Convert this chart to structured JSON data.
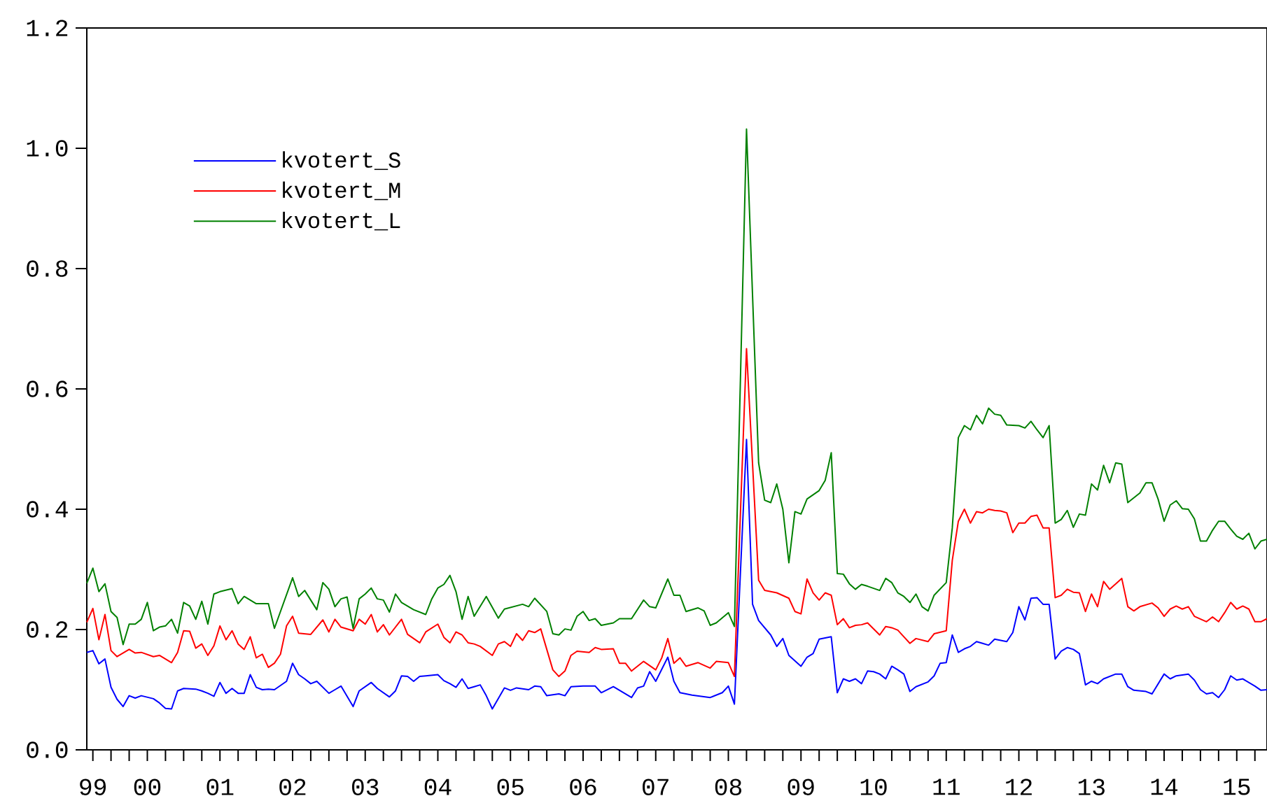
{
  "chart_data": {
    "type": "line",
    "xlim": [
      "1999-09",
      "2015-12"
    ],
    "ylim": [
      0,
      1.2
    ],
    "yticks": [
      {
        "value": 0,
        "label": "0.0"
      },
      {
        "value": 0.2,
        "label": "0.2"
      },
      {
        "value": 0.4,
        "label": "0.4"
      },
      {
        "value": 0.6,
        "label": "0.6"
      },
      {
        "value": 0.8,
        "label": "0.8"
      },
      {
        "value": 1.0,
        "label": "1.0"
      },
      {
        "value": 1.2,
        "label": "1.2"
      }
    ],
    "xticks": [
      {
        "value": "1999-10",
        "label": "99"
      },
      {
        "value": "2000-01",
        "label": null
      },
      {
        "value": "2000-04",
        "label": null
      },
      {
        "value": "2000-07",
        "label": "00"
      },
      {
        "value": "2000-10",
        "label": null
      },
      {
        "value": "2001-01",
        "label": null
      },
      {
        "value": "2001-04",
        "label": null
      },
      {
        "value": "2001-07",
        "label": "01"
      },
      {
        "value": "2001-10",
        "label": null
      },
      {
        "value": "2002-01",
        "label": null
      },
      {
        "value": "2002-04",
        "label": null
      },
      {
        "value": "2002-07",
        "label": "02"
      },
      {
        "value": "2002-10",
        "label": null
      },
      {
        "value": "2003-01",
        "label": null
      },
      {
        "value": "2003-04",
        "label": null
      },
      {
        "value": "2003-07",
        "label": "03"
      },
      {
        "value": "2003-10",
        "label": null
      },
      {
        "value": "2004-01",
        "label": null
      },
      {
        "value": "2004-04",
        "label": null
      },
      {
        "value": "2004-07",
        "label": "04"
      },
      {
        "value": "2004-10",
        "label": null
      },
      {
        "value": "2005-01",
        "label": null
      },
      {
        "value": "2005-04",
        "label": null
      },
      {
        "value": "2005-07",
        "label": "05"
      },
      {
        "value": "2005-10",
        "label": null
      },
      {
        "value": "2006-01",
        "label": null
      },
      {
        "value": "2006-04",
        "label": null
      },
      {
        "value": "2006-07",
        "label": "06"
      },
      {
        "value": "2006-10",
        "label": null
      },
      {
        "value": "2007-01",
        "label": null
      },
      {
        "value": "2007-04",
        "label": null
      },
      {
        "value": "2007-07",
        "label": "07"
      },
      {
        "value": "2007-10",
        "label": null
      },
      {
        "value": "2008-01",
        "label": null
      },
      {
        "value": "2008-04",
        "label": null
      },
      {
        "value": "2008-07",
        "label": "08"
      },
      {
        "value": "2008-10",
        "label": null
      },
      {
        "value": "2009-01",
        "label": null
      },
      {
        "value": "2009-04",
        "label": null
      },
      {
        "value": "2009-07",
        "label": "09"
      },
      {
        "value": "2009-10",
        "label": null
      },
      {
        "value": "2010-01",
        "label": null
      },
      {
        "value": "2010-04",
        "label": null
      },
      {
        "value": "2010-07",
        "label": "10"
      },
      {
        "value": "2010-10",
        "label": null
      },
      {
        "value": "2011-01",
        "label": null
      },
      {
        "value": "2011-04",
        "label": null
      },
      {
        "value": "2011-07",
        "label": "11"
      },
      {
        "value": "2011-10",
        "label": null
      },
      {
        "value": "2012-01",
        "label": null
      },
      {
        "value": "2012-04",
        "label": null
      },
      {
        "value": "2012-07",
        "label": "12"
      },
      {
        "value": "2012-10",
        "label": null
      },
      {
        "value": "2013-01",
        "label": null
      },
      {
        "value": "2013-04",
        "label": null
      },
      {
        "value": "2013-07",
        "label": "13"
      },
      {
        "value": "2013-10",
        "label": null
      },
      {
        "value": "2014-01",
        "label": null
      },
      {
        "value": "2014-04",
        "label": null
      },
      {
        "value": "2014-07",
        "label": "14"
      },
      {
        "value": "2014-10",
        "label": null
      },
      {
        "value": "2015-01",
        "label": null
      },
      {
        "value": "2015-04",
        "label": null
      },
      {
        "value": "2015-07",
        "label": "15"
      },
      {
        "value": "2015-10",
        "label": null
      }
    ],
    "legend": "top left",
    "series": [
      {
        "name": "kvotert_S",
        "color": "#0000ff",
        "x": [
          "1999-09",
          "1999-10",
          "1999-11",
          "1999-12",
          "2000-01",
          "2000-02",
          "2000-03",
          "2000-04",
          "2000-05",
          "2000-06",
          "2000-08",
          "2000-09",
          "2000-10",
          "2000-11",
          "2000-12",
          "2001-01",
          "2001-03",
          "2001-04",
          "2001-05",
          "2001-06",
          "2001-07",
          "2001-08",
          "2001-09",
          "2001-10",
          "2001-11",
          "2001-12",
          "2002-01",
          "2002-02",
          "2002-03",
          "2002-04",
          "2002-06",
          "2002-07",
          "2002-08",
          "2002-09",
          "2002-10",
          "2002-11",
          "2003-01",
          "2003-02",
          "2003-03",
          "2003-05",
          "2003-06",
          "2003-08",
          "2003-09",
          "2003-11",
          "2003-12",
          "2004-01",
          "2004-02",
          "2004-03",
          "2004-04",
          "2004-05",
          "2004-07",
          "2004-08",
          "2004-09",
          "2004-10",
          "2004-11",
          "2004-12",
          "2005-01",
          "2005-02",
          "2005-03",
          "2005-04",
          "2005-06",
          "2005-07",
          "2005-08",
          "2005-10",
          "2005-11",
          "2005-12",
          "2006-01",
          "2006-03",
          "2006-04",
          "2006-05",
          "2006-07",
          "2006-09",
          "2006-10",
          "2006-12",
          "2007-03",
          "2007-04",
          "2007-05",
          "2007-06",
          "2007-07",
          "2007-09",
          "2007-10",
          "2007-11",
          "2008-01",
          "2008-04",
          "2008-06",
          "2008-07",
          "2008-08",
          "2008-10",
          "2008-11",
          "2008-12",
          "2009-02",
          "2009-03",
          "2009-04",
          "2009-05",
          "2009-07",
          "2009-08",
          "2009-09",
          "2009-10",
          "2009-12",
          "2010-01",
          "2010-02",
          "2010-03",
          "2010-04",
          "2010-05",
          "2010-06",
          "2010-07",
          "2010-08",
          "2010-09",
          "2010-10",
          "2010-11",
          "2010-12",
          "2011-01",
          "2011-02",
          "2011-04",
          "2011-05",
          "2011-06",
          "2011-07",
          "2011-08",
          "2011-09",
          "2011-10",
          "2011-11",
          "2011-12",
          "2012-01",
          "2012-02",
          "2012-03",
          "2012-04",
          "2012-05",
          "2012-06",
          "2012-07",
          "2012-08",
          "2012-09",
          "2012-10",
          "2012-11",
          "2012-12",
          "2013-01",
          "2013-02",
          "2013-03",
          "2013-04",
          "2013-05",
          "2013-06",
          "2013-07",
          "2013-08",
          "2013-09",
          "2013-11",
          "2013-12",
          "2014-01",
          "2014-02",
          "2014-04",
          "2014-05",
          "2014-07",
          "2014-08",
          "2014-09",
          "2014-11",
          "2014-12",
          "2015-01",
          "2015-02",
          "2015-03",
          "2015-04",
          "2015-05",
          "2015-06",
          "2015-07",
          "2015-08",
          "2015-10",
          "2015-11",
          "2015-12"
        ],
        "values": [
          0.162,
          0.165,
          0.143,
          0.151,
          0.104,
          0.084,
          0.072,
          0.09,
          0.086,
          0.09,
          0.085,
          0.078,
          0.069,
          0.068,
          0.098,
          0.102,
          0.101,
          0.098,
          0.094,
          0.089,
          0.112,
          0.094,
          0.102,
          0.094,
          0.094,
          0.125,
          0.104,
          0.1,
          0.101,
          0.1,
          0.114,
          0.144,
          0.125,
          0.118,
          0.11,
          0.114,
          0.094,
          0.1,
          0.106,
          0.072,
          0.098,
          0.112,
          0.102,
          0.088,
          0.098,
          0.123,
          0.122,
          0.114,
          0.122,
          0.123,
          0.125,
          0.115,
          0.11,
          0.104,
          0.118,
          0.102,
          0.105,
          0.108,
          0.09,
          0.068,
          0.103,
          0.099,
          0.103,
          0.1,
          0.106,
          0.105,
          0.09,
          0.093,
          0.09,
          0.105,
          0.106,
          0.106,
          0.095,
          0.105,
          0.087,
          0.103,
          0.106,
          0.13,
          0.114,
          0.154,
          0.114,
          0.095,
          0.091,
          0.087,
          0.095,
          0.106,
          0.076,
          0.516,
          0.242,
          0.215,
          0.191,
          0.172,
          0.185,
          0.157,
          0.139,
          0.154,
          0.16,
          0.184,
          0.188,
          0.095,
          0.118,
          0.114,
          0.118,
          0.11,
          0.131,
          0.13,
          0.126,
          0.118,
          0.139,
          0.133,
          0.126,
          0.097,
          0.105,
          0.113,
          0.123,
          0.144,
          0.145,
          0.191,
          0.162,
          0.168,
          0.172,
          0.18,
          0.177,
          0.174,
          0.184,
          0.182,
          0.18,
          0.195,
          0.238,
          0.216,
          0.252,
          0.253,
          0.242,
          0.242,
          0.151,
          0.164,
          0.17,
          0.167,
          0.16,
          0.108,
          0.114,
          0.11,
          0.118,
          0.126,
          0.126,
          0.105,
          0.099,
          0.097,
          0.093,
          0.126,
          0.118,
          0.123,
          0.126,
          0.116,
          0.1,
          0.093,
          0.095,
          0.087,
          0.1,
          0.123,
          0.116,
          0.118,
          0.106,
          0.099,
          0.1
        ]
      },
      {
        "name": "kvotert_M",
        "color": "#ff0000",
        "x": [
          "1999-09",
          "1999-10",
          "1999-11",
          "1999-12",
          "2000-01",
          "2000-02",
          "2000-04",
          "2000-05",
          "2000-06",
          "2000-08",
          "2000-09",
          "2000-11",
          "2000-12",
          "2001-01",
          "2001-02",
          "2001-03",
          "2001-04",
          "2001-05",
          "2001-06",
          "2001-07",
          "2001-08",
          "2001-09",
          "2001-10",
          "2001-11",
          "2001-12",
          "2002-01",
          "2002-02",
          "2002-03",
          "2002-04",
          "2002-05",
          "2002-06",
          "2002-07",
          "2002-08",
          "2002-10",
          "2002-12",
          "2003-01",
          "2003-02",
          "2003-03",
          "2003-05",
          "2003-06",
          "2003-07",
          "2003-08",
          "2003-09",
          "2003-10",
          "2003-11",
          "2004-01",
          "2004-02",
          "2004-04",
          "2004-05",
          "2004-07",
          "2004-08",
          "2004-09",
          "2004-10",
          "2004-11",
          "2004-12",
          "2005-01",
          "2005-02",
          "2005-04",
          "2005-05",
          "2005-06",
          "2005-07",
          "2005-08",
          "2005-09",
          "2005-10",
          "2005-11",
          "2005-12",
          "2006-02",
          "2006-03",
          "2006-04",
          "2006-05",
          "2006-06",
          "2006-08",
          "2006-09",
          "2006-10",
          "2006-12",
          "2007-01",
          "2007-02",
          "2007-03",
          "2007-05",
          "2007-07",
          "2007-08",
          "2007-09",
          "2007-10",
          "2007-11",
          "2007-12",
          "2008-02",
          "2008-04",
          "2008-05",
          "2008-07",
          "2008-08",
          "2008-10",
          "2008-12",
          "2009-01",
          "2009-03",
          "2009-05",
          "2009-06",
          "2009-07",
          "2009-08",
          "2009-09",
          "2009-10",
          "2009-11",
          "2009-12",
          "2010-01",
          "2010-02",
          "2010-03",
          "2010-04",
          "2010-05",
          "2010-06",
          "2010-08",
          "2010-09",
          "2010-10",
          "2010-11",
          "2010-12",
          "2011-01",
          "2011-02",
          "2011-04",
          "2011-05",
          "2011-07",
          "2011-08",
          "2011-09",
          "2011-10",
          "2011-11",
          "2011-12",
          "2012-01",
          "2012-02",
          "2012-03",
          "2012-04",
          "2012-05",
          "2012-06",
          "2012-07",
          "2012-08",
          "2012-09",
          "2012-10",
          "2012-11",
          "2012-12",
          "2013-01",
          "2013-02",
          "2013-03",
          "2013-04",
          "2013-05",
          "2013-06",
          "2013-07",
          "2013-08",
          "2013-09",
          "2013-10",
          "2013-12",
          "2014-01",
          "2014-02",
          "2014-03",
          "2014-05",
          "2014-06",
          "2014-07",
          "2014-08",
          "2014-09",
          "2014-10",
          "2014-11",
          "2014-12",
          "2015-02",
          "2015-03",
          "2015-04",
          "2015-05",
          "2015-06",
          "2015-07",
          "2015-08",
          "2015-09",
          "2015-10",
          "2015-11",
          "2015-12"
        ],
        "values": [
          0.212,
          0.235,
          0.183,
          0.225,
          0.165,
          0.155,
          0.167,
          0.161,
          0.162,
          0.155,
          0.157,
          0.145,
          0.162,
          0.198,
          0.197,
          0.169,
          0.176,
          0.157,
          0.173,
          0.206,
          0.183,
          0.198,
          0.176,
          0.167,
          0.188,
          0.153,
          0.159,
          0.137,
          0.144,
          0.159,
          0.206,
          0.222,
          0.194,
          0.192,
          0.216,
          0.196,
          0.217,
          0.204,
          0.198,
          0.217,
          0.209,
          0.225,
          0.196,
          0.208,
          0.191,
          0.217,
          0.192,
          0.178,
          0.196,
          0.209,
          0.187,
          0.178,
          0.196,
          0.191,
          0.178,
          0.176,
          0.172,
          0.157,
          0.176,
          0.18,
          0.172,
          0.193,
          0.182,
          0.198,
          0.195,
          0.201,
          0.133,
          0.122,
          0.131,
          0.157,
          0.164,
          0.162,
          0.17,
          0.167,
          0.168,
          0.144,
          0.144,
          0.131,
          0.147,
          0.133,
          0.153,
          0.185,
          0.144,
          0.153,
          0.139,
          0.145,
          0.136,
          0.147,
          0.145,
          0.122,
          0.667,
          0.282,
          0.265,
          0.261,
          0.252,
          0.23,
          0.226,
          0.284,
          0.261,
          0.249,
          0.261,
          0.257,
          0.208,
          0.218,
          0.203,
          0.207,
          0.208,
          0.211,
          0.191,
          0.205,
          0.203,
          0.199,
          0.188,
          0.177,
          0.185,
          0.18,
          0.193,
          0.198,
          0.315,
          0.38,
          0.4,
          0.377,
          0.396,
          0.394,
          0.4,
          0.398,
          0.397,
          0.394,
          0.361,
          0.377,
          0.377,
          0.388,
          0.39,
          0.369,
          0.369,
          0.253,
          0.257,
          0.267,
          0.262,
          0.261,
          0.23,
          0.259,
          0.238,
          0.28,
          0.267,
          0.285,
          0.238,
          0.231,
          0.238,
          0.244,
          0.236,
          0.222,
          0.234,
          0.239,
          0.234,
          0.238,
          0.222,
          0.213,
          0.221,
          0.213,
          0.228,
          0.245,
          0.234,
          0.239,
          0.234,
          0.213,
          0.213,
          0.218
        ]
      },
      {
        "name": "kvotert_L",
        "color": "#008000",
        "x": [
          "1999-09",
          "1999-10",
          "1999-11",
          "1999-12",
          "2000-01",
          "2000-02",
          "2000-03",
          "2000-04",
          "2000-05",
          "2000-06",
          "2000-07",
          "2000-08",
          "2000-09",
          "2000-10",
          "2000-11",
          "2000-12",
          "2001-01",
          "2001-02",
          "2001-03",
          "2001-04",
          "2001-05",
          "2001-06",
          "2001-07",
          "2001-09",
          "2001-10",
          "2001-11",
          "2002-01",
          "2002-03",
          "2002-04",
          "2002-07",
          "2002-08",
          "2002-09",
          "2002-11",
          "2002-12",
          "2003-01",
          "2003-02",
          "2003-03",
          "2003-04",
          "2003-05",
          "2003-06",
          "2003-07",
          "2003-08",
          "2003-09",
          "2003-10",
          "2003-11",
          "2003-12",
          "2004-01",
          "2004-03",
          "2004-05",
          "2004-06",
          "2004-07",
          "2004-08",
          "2004-09",
          "2004-10",
          "2004-11",
          "2004-12",
          "2005-01",
          "2005-03",
          "2005-05",
          "2005-06",
          "2005-09",
          "2005-10",
          "2005-11",
          "2006-01",
          "2006-02",
          "2006-03",
          "2006-04",
          "2006-05",
          "2006-06",
          "2006-07",
          "2006-08",
          "2006-09",
          "2006-10",
          "2006-12",
          "2007-01",
          "2007-03",
          "2007-05",
          "2007-06",
          "2007-07",
          "2007-09",
          "2007-10",
          "2007-11",
          "2007-12",
          "2008-02",
          "2008-03",
          "2008-04",
          "2008-05",
          "2008-07",
          "2008-08",
          "2008-10",
          "2008-12",
          "2009-01",
          "2009-02",
          "2009-03",
          "2009-04",
          "2009-05",
          "2009-06",
          "2009-07",
          "2009-08",
          "2009-10",
          "2009-11",
          "2009-12",
          "2010-01",
          "2010-02",
          "2010-03",
          "2010-04",
          "2010-05",
          "2010-06",
          "2010-08",
          "2010-09",
          "2010-10",
          "2010-11",
          "2010-12",
          "2011-01",
          "2011-02",
          "2011-03",
          "2011-04",
          "2011-05",
          "2011-07",
          "2011-08",
          "2011-09",
          "2011-10",
          "2011-11",
          "2011-12",
          "2012-01",
          "2012-02",
          "2012-03",
          "2012-04",
          "2012-05",
          "2012-07",
          "2012-08",
          "2012-09",
          "2012-10",
          "2012-11",
          "2012-12",
          "2013-01",
          "2013-02",
          "2013-03",
          "2013-04",
          "2013-05",
          "2013-06",
          "2013-07",
          "2013-08",
          "2013-09",
          "2013-10",
          "2013-11",
          "2013-12",
          "2014-01",
          "2014-02",
          "2014-03",
          "2014-04",
          "2014-05",
          "2014-06",
          "2014-07",
          "2014-08",
          "2014-09",
          "2014-10",
          "2014-11",
          "2014-12",
          "2015-01",
          "2015-02",
          "2015-03",
          "2015-04",
          "2015-05",
          "2015-06",
          "2015-07",
          "2015-08",
          "2015-09",
          "2015-10",
          "2015-11",
          "2015-12"
        ],
        "values": [
          0.277,
          0.302,
          0.263,
          0.276,
          0.23,
          0.22,
          0.175,
          0.209,
          0.209,
          0.217,
          0.245,
          0.198,
          0.204,
          0.206,
          0.217,
          0.194,
          0.245,
          0.239,
          0.217,
          0.247,
          0.209,
          0.259,
          0.263,
          0.268,
          0.243,
          0.255,
          0.243,
          0.243,
          0.202,
          0.286,
          0.255,
          0.265,
          0.233,
          0.278,
          0.267,
          0.238,
          0.251,
          0.254,
          0.202,
          0.251,
          0.259,
          0.269,
          0.251,
          0.249,
          0.229,
          0.259,
          0.245,
          0.233,
          0.225,
          0.251,
          0.269,
          0.275,
          0.29,
          0.263,
          0.217,
          0.255,
          0.222,
          0.255,
          0.219,
          0.234,
          0.242,
          0.238,
          0.252,
          0.23,
          0.193,
          0.191,
          0.201,
          0.199,
          0.222,
          0.23,
          0.215,
          0.218,
          0.207,
          0.211,
          0.218,
          0.218,
          0.249,
          0.238,
          0.236,
          0.284,
          0.257,
          0.257,
          0.23,
          0.236,
          0.231,
          0.207,
          0.211,
          0.228,
          0.205,
          1.032,
          0.477,
          0.415,
          0.411,
          0.442,
          0.4,
          0.311,
          0.396,
          0.392,
          0.417,
          0.431,
          0.448,
          0.494,
          0.293,
          0.292,
          0.276,
          0.267,
          0.275,
          0.272,
          0.265,
          0.285,
          0.278,
          0.261,
          0.255,
          0.245,
          0.259,
          0.238,
          0.231,
          0.257,
          0.278,
          0.369,
          0.519,
          0.539,
          0.532,
          0.556,
          0.542,
          0.568,
          0.558,
          0.556,
          0.54,
          0.539,
          0.535,
          0.546,
          0.532,
          0.519,
          0.539,
          0.377,
          0.383,
          0.398,
          0.37,
          0.392,
          0.39,
          0.442,
          0.432,
          0.473,
          0.444,
          0.477,
          0.475,
          0.411,
          0.419,
          0.427,
          0.444,
          0.444,
          0.417,
          0.38,
          0.407,
          0.414,
          0.401,
          0.4,
          0.384,
          0.347,
          0.347,
          0.365,
          0.38,
          0.38,
          0.367,
          0.355,
          0.35,
          0.36,
          0.334,
          0.347,
          0.35
        ]
      }
    ]
  }
}
